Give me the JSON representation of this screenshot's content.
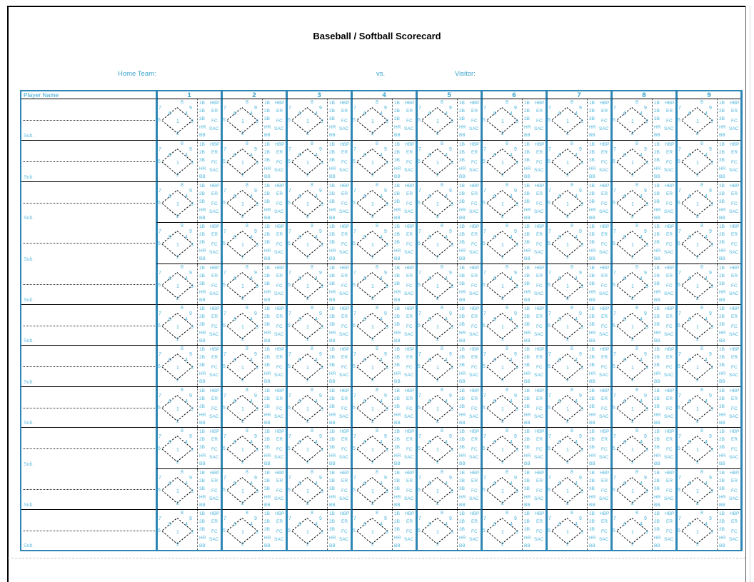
{
  "page": {
    "title": "Baseball / Softball Scorecard",
    "home_team_label": "Home Team:",
    "vs_label": "vs.",
    "visitor_label": "Visitor:"
  },
  "table": {
    "player_name_header": "Player Name",
    "inning_headers": [
      "1",
      "2",
      "3",
      "4",
      "5",
      "6",
      "7",
      "8",
      "9"
    ],
    "row_count": 11,
    "sub_label": "Sub.",
    "scoring_cell": {
      "position_digits": {
        "pitcher": "1",
        "catcher": "2",
        "first_base": "3",
        "second_base": "4",
        "third_base": "5",
        "shortstop": "6",
        "left_field": "7",
        "center_field": "8",
        "right_field": "9"
      },
      "hit_labels": [
        "1B",
        "2B",
        "3B",
        "HR",
        "BB"
      ],
      "result_labels": [
        "HBP",
        "ER",
        "FC",
        "SAC"
      ]
    }
  },
  "colors": {
    "accent_border": "#2E86B5",
    "accent_text": "#4FB6DC",
    "header_text": "#2B9DC9",
    "label_text": "#3BA3CC",
    "sub_text": "#6BC2E2",
    "title_text": "#000000"
  }
}
